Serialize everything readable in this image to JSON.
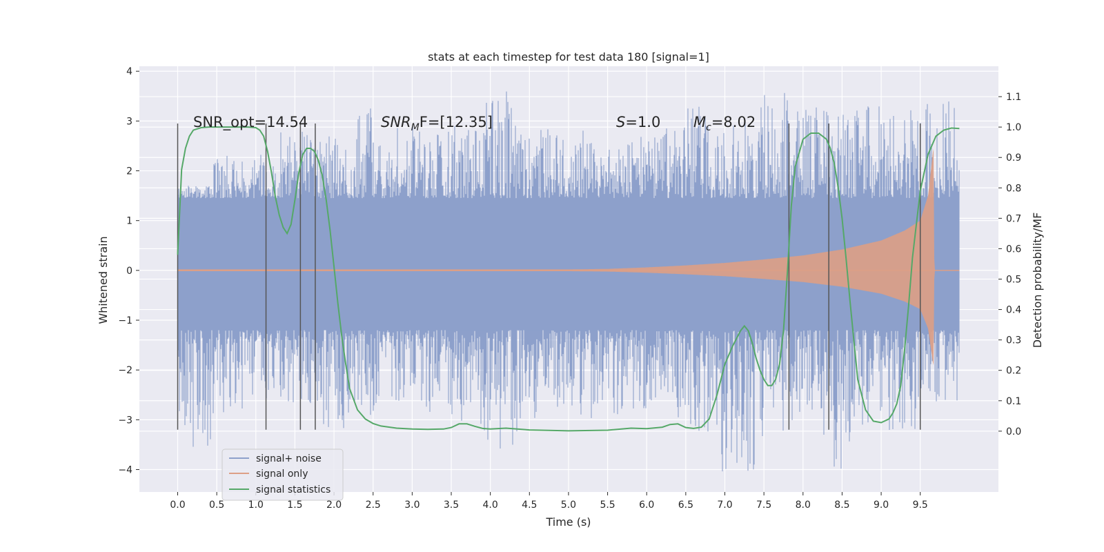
{
  "chart_data": {
    "type": "line",
    "title": "stats at each timestep for test data 180 [signal=1]",
    "xlabel": "Time (s)",
    "ylabel_left": "Whitened strain",
    "ylabel_right": "Detection probability/MF",
    "xlim": [
      -0.49,
      10.5
    ],
    "xticks": [
      "0.0",
      "0.5",
      "1.0",
      "1.5",
      "2.0",
      "2.5",
      "3.0",
      "3.5",
      "4.0",
      "4.5",
      "5.0",
      "5.5",
      "6.0",
      "6.5",
      "7.0",
      "7.5",
      "8.0",
      "8.5",
      "9.0",
      "9.5"
    ],
    "ylim_left": [
      -4.45,
      4.1
    ],
    "yticks_left": [
      "−4",
      "−3",
      "−2",
      "−1",
      "0",
      "1",
      "2",
      "3",
      "4"
    ],
    "ylim_right": [
      -0.2,
      1.2
    ],
    "yticks_right": [
      "0.0",
      "0.1",
      "0.2",
      "0.3",
      "0.4",
      "0.5",
      "0.6",
      "0.7",
      "0.8",
      "0.9",
      "1.0",
      "1.1"
    ],
    "grid": true,
    "legend_position": "lower-left",
    "noise": {
      "name": "signal+ noise",
      "color": "#8da0cb",
      "t_range": [
        0.0,
        10.0
      ],
      "band_max": [
        1.7,
        2.3,
        2.5,
        2.8,
        2.7,
        3.3,
        3.0,
        2.8,
        2.9,
        3.8,
        3.0,
        2.9,
        2.6,
        2.7,
        2.9,
        3.3,
        3.1,
        3.6,
        3.3,
        3.4,
        3.3,
        3.3,
        3.4
      ],
      "band_min": [
        -3.75,
        -2.9,
        -2.7,
        -2.7,
        -3.2,
        -3.1,
        -2.8,
        -2.9,
        -3.2,
        -3.6,
        -3.1,
        -2.9,
        -3.0,
        -2.8,
        -3.0,
        -3.3,
        -4.05,
        -3.4,
        -3.1,
        -4.0,
        -3.4,
        -3.2,
        -2.7
      ]
    },
    "signal": {
      "name": "signal only",
      "color": "#dd9f85",
      "amp_t": [
        0.0,
        5.0,
        5.5,
        6.0,
        6.5,
        7.0,
        7.5,
        8.0,
        8.5,
        9.0,
        9.3,
        9.5,
        9.6,
        9.65,
        9.67,
        9.68,
        10.0
      ],
      "amp_v": [
        0.02,
        0.02,
        0.03,
        0.06,
        0.1,
        0.15,
        0.22,
        0.3,
        0.42,
        0.6,
        0.8,
        1.0,
        1.5,
        2.2,
        2.5,
        0.0,
        0.0
      ]
    },
    "stats": {
      "name": "signal statistics",
      "color": "#55a868",
      "x": [
        0.0,
        0.05,
        0.1,
        0.15,
        0.2,
        0.3,
        0.4,
        0.5,
        0.6,
        0.7,
        0.8,
        0.9,
        1.0,
        1.05,
        1.1,
        1.15,
        1.2,
        1.25,
        1.3,
        1.35,
        1.4,
        1.45,
        1.5,
        1.55,
        1.6,
        1.65,
        1.7,
        1.75,
        1.8,
        1.85,
        1.9,
        1.95,
        2.0,
        2.05,
        2.1,
        2.15,
        2.2,
        2.3,
        2.4,
        2.5,
        2.6,
        2.8,
        3.0,
        3.2,
        3.4,
        3.5,
        3.6,
        3.7,
        3.8,
        3.9,
        4.0,
        4.2,
        4.5,
        5.0,
        5.5,
        5.8,
        6.0,
        6.2,
        6.3,
        6.4,
        6.5,
        6.6,
        6.7,
        6.8,
        6.9,
        7.0,
        7.1,
        7.2,
        7.25,
        7.3,
        7.35,
        7.4,
        7.45,
        7.5,
        7.55,
        7.6,
        7.65,
        7.7,
        7.75,
        7.8,
        7.85,
        7.9,
        8.0,
        8.1,
        8.2,
        8.3,
        8.35,
        8.4,
        8.45,
        8.5,
        8.55,
        8.6,
        8.65,
        8.7,
        8.8,
        8.9,
        9.0,
        9.1,
        9.15,
        9.2,
        9.25,
        9.3,
        9.35,
        9.4,
        9.5,
        9.6,
        9.7,
        9.8,
        9.9,
        10.0
      ],
      "y": [
        0.58,
        0.86,
        0.93,
        0.97,
        0.99,
        0.998,
        1.0,
        1.0,
        1.0,
        1.0,
        1.0,
        1.0,
        0.998,
        0.99,
        0.97,
        0.92,
        0.85,
        0.77,
        0.71,
        0.67,
        0.65,
        0.68,
        0.76,
        0.85,
        0.91,
        0.93,
        0.93,
        0.92,
        0.89,
        0.84,
        0.76,
        0.66,
        0.54,
        0.42,
        0.31,
        0.22,
        0.14,
        0.07,
        0.04,
        0.025,
        0.017,
        0.01,
        0.007,
        0.006,
        0.007,
        0.012,
        0.024,
        0.024,
        0.016,
        0.009,
        0.007,
        0.01,
        0.004,
        0.001,
        0.003,
        0.01,
        0.008,
        0.013,
        0.022,
        0.024,
        0.012,
        0.009,
        0.013,
        0.04,
        0.12,
        0.22,
        0.28,
        0.33,
        0.346,
        0.33,
        0.29,
        0.24,
        0.2,
        0.17,
        0.15,
        0.15,
        0.17,
        0.22,
        0.33,
        0.52,
        0.74,
        0.87,
        0.96,
        0.98,
        0.98,
        0.96,
        0.93,
        0.88,
        0.8,
        0.7,
        0.57,
        0.43,
        0.3,
        0.17,
        0.07,
        0.033,
        0.028,
        0.04,
        0.06,
        0.09,
        0.15,
        0.27,
        0.41,
        0.57,
        0.79,
        0.91,
        0.97,
        0.99,
        0.997,
        0.995
      ]
    },
    "vlines": {
      "color": "#555555",
      "x": [
        0.0,
        1.13,
        1.57,
        1.76,
        7.82,
        8.33,
        9.5
      ],
      "y_bottom": -3.2,
      "y_top": [
        2.95,
        2.95,
        2.95,
        2.95,
        2.95,
        2.95,
        2.95
      ]
    },
    "annotations": {
      "snr_opt": "SNR_opt=14.54",
      "snr_mf_main": "SNR",
      "snr_mf_sub": "M",
      "snr_mf_tail": "F=[12.35]",
      "s_main": "S",
      "s_tail": "=1.0",
      "mc_main": "M",
      "mc_sub": "c",
      "mc_tail": "=8.02"
    },
    "legend": [
      {
        "label": "signal+ noise",
        "color": "#8da0cb"
      },
      {
        "label": "signal only",
        "color": "#dd9f85"
      },
      {
        "label": "signal statistics",
        "color": "#55a868"
      }
    ]
  }
}
